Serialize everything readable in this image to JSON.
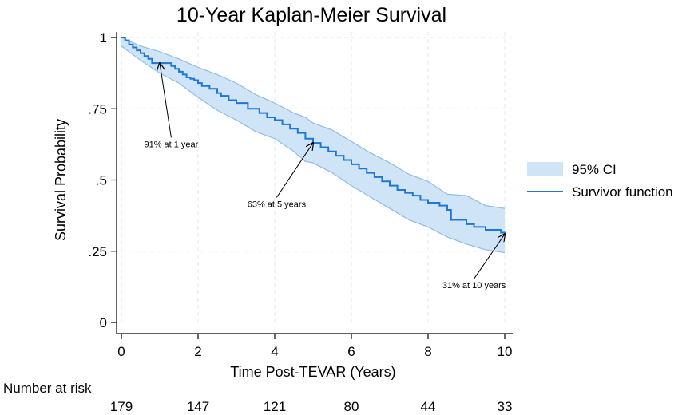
{
  "chart_data": {
    "type": "line",
    "title": "10-Year Kaplan-Meier Survival",
    "xlabel": "Time Post-TEVAR (Years)",
    "ylabel": "Survival Probability",
    "xlim": [
      0,
      10
    ],
    "ylim": [
      0,
      1
    ],
    "x_ticks": [
      0,
      2,
      4,
      6,
      8,
      10
    ],
    "x_tick_labels": [
      "0",
      "2",
      "4",
      "6",
      "8",
      "10"
    ],
    "y_ticks": [
      0,
      0.25,
      0.5,
      0.75,
      1
    ],
    "y_tick_labels": [
      "0",
      ".25",
      ".5",
      ".75",
      "1"
    ],
    "grid": true,
    "legend_position": "right",
    "series": [
      {
        "name": "Survivor function",
        "type": "step",
        "color": "#1f77d4",
        "x": [
          0,
          0.1,
          0.2,
          0.3,
          0.4,
          0.5,
          0.6,
          0.7,
          0.8,
          1.2,
          1.3,
          1.4,
          1.5,
          1.6,
          1.7,
          1.8,
          1.9,
          2.0,
          2.1,
          2.3,
          2.5,
          2.6,
          2.8,
          3.0,
          3.3,
          3.6,
          3.8,
          4.0,
          4.2,
          4.4,
          4.6,
          4.8,
          5.0,
          5.2,
          5.4,
          5.6,
          5.8,
          6.0,
          6.2,
          6.4,
          6.6,
          6.8,
          7.0,
          7.2,
          7.4,
          7.6,
          7.8,
          8.0,
          8.3,
          8.5,
          8.6,
          9.0,
          9.2,
          9.5,
          9.9,
          10.0
        ],
        "y": [
          1.0,
          0.99,
          0.975,
          0.965,
          0.955,
          0.945,
          0.935,
          0.925,
          0.91,
          0.91,
          0.9,
          0.89,
          0.88,
          0.87,
          0.86,
          0.855,
          0.85,
          0.84,
          0.83,
          0.82,
          0.805,
          0.795,
          0.78,
          0.77,
          0.75,
          0.735,
          0.72,
          0.71,
          0.695,
          0.68,
          0.665,
          0.645,
          0.63,
          0.615,
          0.6,
          0.585,
          0.57,
          0.555,
          0.54,
          0.525,
          0.51,
          0.495,
          0.48,
          0.465,
          0.455,
          0.445,
          0.43,
          0.42,
          0.41,
          0.395,
          0.36,
          0.345,
          0.335,
          0.325,
          0.315,
          0.31
        ]
      },
      {
        "name": "95% CI",
        "type": "band",
        "color": "#cfe4f7",
        "x": [
          0,
          0.5,
          1.0,
          1.5,
          2.0,
          2.5,
          3.0,
          3.5,
          4.0,
          4.5,
          4.8,
          5.0,
          5.5,
          6.0,
          6.5,
          7.0,
          7.5,
          8.0,
          8.5,
          9.0,
          9.5,
          10.0
        ],
        "upper": [
          1.0,
          0.97,
          0.95,
          0.925,
          0.895,
          0.87,
          0.84,
          0.8,
          0.77,
          0.735,
          0.72,
          0.7,
          0.675,
          0.635,
          0.595,
          0.56,
          0.52,
          0.495,
          0.45,
          0.445,
          0.41,
          0.4
        ],
        "lower": [
          0.97,
          0.92,
          0.875,
          0.84,
          0.79,
          0.745,
          0.71,
          0.67,
          0.645,
          0.6,
          0.565,
          0.56,
          0.525,
          0.48,
          0.44,
          0.4,
          0.36,
          0.335,
          0.3,
          0.275,
          0.255,
          0.245
        ]
      }
    ],
    "annotations": [
      {
        "label": "91% at 1 year",
        "point_x": 1.0,
        "point_y": 0.91,
        "text_x": 1.3,
        "text_y": 0.615,
        "text_anchor": "middle"
      },
      {
        "label": "63% at 5 years",
        "point_x": 5.0,
        "point_y": 0.63,
        "text_x": 4.05,
        "text_y": 0.405,
        "text_anchor": "middle"
      },
      {
        "label": "31% at 10 years",
        "point_x": 10.0,
        "point_y": 0.31,
        "text_x": 9.2,
        "text_y": 0.12,
        "text_anchor": "middle"
      }
    ],
    "legend": [
      {
        "label": "95% CI",
        "kind": "band",
        "color": "#cfe4f7"
      },
      {
        "label": "Survivor function",
        "kind": "line",
        "color": "#1f77d4"
      }
    ],
    "risk_table": {
      "title": "Number at risk",
      "x": [
        0,
        2,
        4,
        6,
        8,
        10
      ],
      "values": [
        "179",
        "147",
        "121",
        "80",
        "44",
        "33"
      ]
    }
  }
}
